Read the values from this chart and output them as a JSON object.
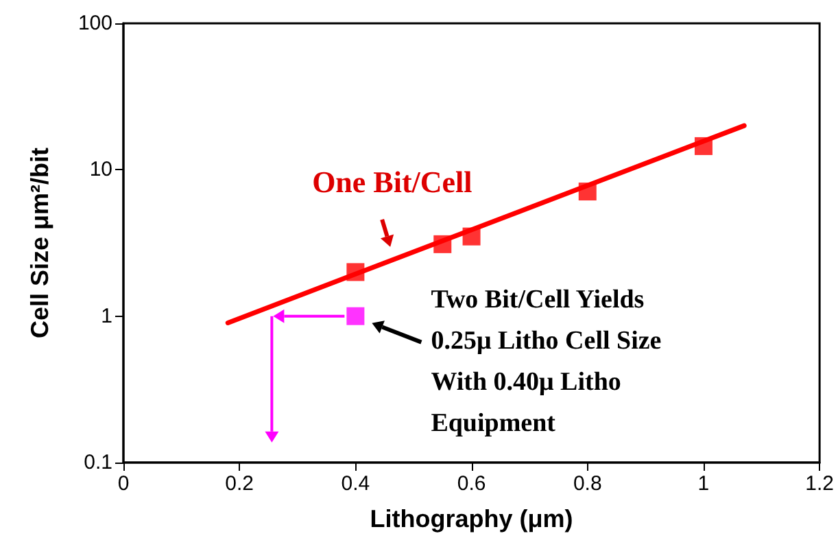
{
  "chart_data": {
    "type": "scatter",
    "xlabel": "Lithography (μm)",
    "ylabel": "Cell Size μm²/bit",
    "log": "y",
    "xlim": [
      0,
      1.2
    ],
    "xticks": [
      0,
      0.2,
      0.4,
      0.6,
      0.8,
      1,
      1.2
    ],
    "ylim": [
      0.1,
      100
    ],
    "yticks": [
      0.1,
      1,
      10,
      100
    ],
    "grid": false,
    "marker": "square",
    "series": [
      {
        "type": "line",
        "color": "#ff0000",
        "marker": "none",
        "x": [
          0.18,
          1.07
        ],
        "values": [
          0.9,
          20
        ]
      },
      {
        "color": "#ff0000",
        "x": [
          0.4,
          0.55,
          0.6,
          0.8,
          1.0
        ],
        "values": [
          2.0,
          3.1,
          3.5,
          7.1,
          14.5
        ]
      },
      {
        "color": "#ff00ff",
        "x": [
          0.4
        ],
        "values": [
          1.0
        ]
      }
    ],
    "annotations": [
      {
        "text": "One Bit/Cell",
        "x": 0.46,
        "y": 2.5
      },
      {
        "text": "Two Bit/Cell Yields\n0.25μ Litho Cell Size\nWith 0.40μ Litho\nEquipment",
        "x": 0.4,
        "y": 1.0
      }
    ]
  }
}
